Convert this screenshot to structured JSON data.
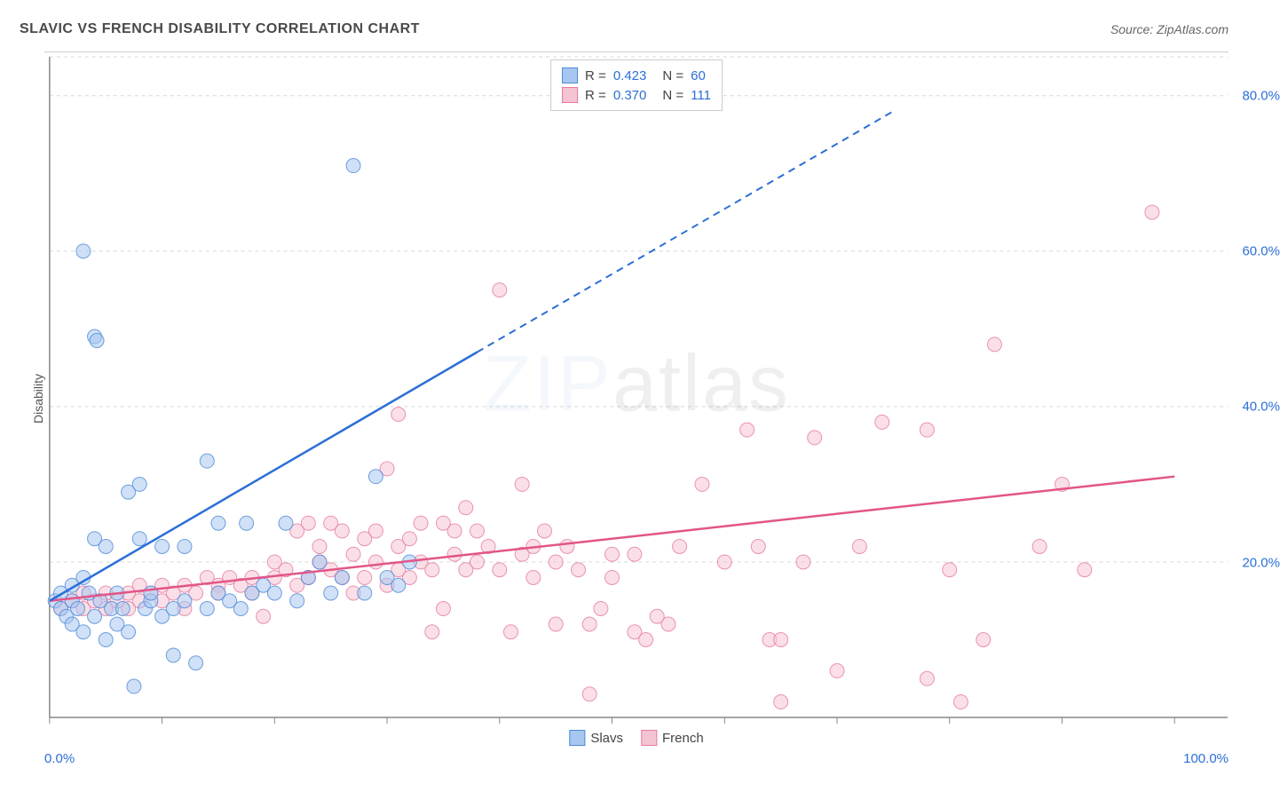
{
  "header": {
    "title": "SLAVIC VS FRENCH DISABILITY CORRELATION CHART",
    "source_label": "Source: ZipAtlas.com"
  },
  "chart": {
    "type": "scatter",
    "ylabel": "Disability",
    "watermark": {
      "zip": "ZIP",
      "atlas": "atlas"
    },
    "background_color": "#ffffff",
    "grid_color": "#d8d8d8",
    "axis_color": "#888888",
    "text_color": "#555555",
    "accent_color": "#2b6fd6",
    "xlim": [
      0,
      100
    ],
    "ylim": [
      0,
      85
    ],
    "xtick_positions": [
      0,
      10,
      20,
      30,
      40,
      50,
      60,
      70,
      80,
      90,
      100
    ],
    "xtick_labels": {
      "0": "0.0%",
      "100": "100.0%"
    },
    "ytick_positions": [
      20,
      40,
      60,
      80
    ],
    "ytick_labels": [
      "20.0%",
      "40.0%",
      "60.0%",
      "80.0%"
    ],
    "marker_radius": 8,
    "marker_opacity": 0.55,
    "line_width_solid": 2.5,
    "line_width_dash": 2,
    "series": {
      "slavs": {
        "label": "Slavs",
        "fill_color": "#a7c7f0",
        "stroke_color": "#4d89d6",
        "line_color": "#2b6fd6",
        "R": "0.423",
        "N": "60",
        "trend": {
          "x1": 0,
          "y1": 15,
          "x2": 38,
          "y2": 47,
          "dash_after_x": 38,
          "x3": 75,
          "y3": 78
        },
        "points": [
          [
            0.5,
            15
          ],
          [
            1,
            14
          ],
          [
            1,
            16
          ],
          [
            1.5,
            13
          ],
          [
            2,
            15
          ],
          [
            2,
            17
          ],
          [
            2,
            12
          ],
          [
            2.5,
            14
          ],
          [
            3,
            18
          ],
          [
            3,
            11
          ],
          [
            3.5,
            16
          ],
          [
            4,
            13
          ],
          [
            4,
            23
          ],
          [
            4.5,
            15
          ],
          [
            5,
            10
          ],
          [
            5,
            22
          ],
          [
            5.5,
            14
          ],
          [
            3,
            60
          ],
          [
            4,
            49
          ],
          [
            4.2,
            48.5
          ],
          [
            6,
            12
          ],
          [
            6,
            16
          ],
          [
            6.5,
            14
          ],
          [
            7,
            11
          ],
          [
            7,
            29
          ],
          [
            8,
            30
          ],
          [
            8,
            23
          ],
          [
            8.5,
            14
          ],
          [
            9,
            15
          ],
          [
            9,
            16
          ],
          [
            10,
            22
          ],
          [
            10,
            13
          ],
          [
            11,
            8
          ],
          [
            11,
            14
          ],
          [
            12,
            15
          ],
          [
            12,
            22
          ],
          [
            13,
            7
          ],
          [
            14,
            33
          ],
          [
            14,
            14
          ],
          [
            15,
            16
          ],
          [
            15,
            25
          ],
          [
            16,
            15
          ],
          [
            17,
            14
          ],
          [
            17.5,
            25
          ],
          [
            18,
            16
          ],
          [
            19,
            17
          ],
          [
            20,
            16
          ],
          [
            21,
            25
          ],
          [
            22,
            15
          ],
          [
            23,
            18
          ],
          [
            24,
            20
          ],
          [
            25,
            16
          ],
          [
            26,
            18
          ],
          [
            27,
            71
          ],
          [
            28,
            16
          ],
          [
            29,
            31
          ],
          [
            30,
            18
          ],
          [
            31,
            17
          ],
          [
            32,
            20
          ],
          [
            7.5,
            4
          ]
        ]
      },
      "french": {
        "label": "French",
        "fill_color": "#f5c4d3",
        "stroke_color": "#e67aa0",
        "line_color": "#e25588",
        "R": "0.370",
        "N": "111",
        "trend": {
          "x1": 0,
          "y1": 15,
          "x2": 100,
          "y2": 31
        },
        "points": [
          [
            1,
            14
          ],
          [
            2,
            15
          ],
          [
            3,
            14
          ],
          [
            3,
            16
          ],
          [
            4,
            15
          ],
          [
            5,
            14
          ],
          [
            5,
            16
          ],
          [
            6,
            15
          ],
          [
            7,
            16
          ],
          [
            7,
            14
          ],
          [
            8,
            17
          ],
          [
            8,
            15
          ],
          [
            9,
            16
          ],
          [
            10,
            17
          ],
          [
            10,
            15
          ],
          [
            11,
            16
          ],
          [
            12,
            17
          ],
          [
            12,
            14
          ],
          [
            13,
            16
          ],
          [
            14,
            18
          ],
          [
            15,
            17
          ],
          [
            15,
            16
          ],
          [
            16,
            18
          ],
          [
            17,
            17
          ],
          [
            18,
            18
          ],
          [
            18,
            16
          ],
          [
            19,
            13
          ],
          [
            20,
            18
          ],
          [
            20,
            20
          ],
          [
            21,
            19
          ],
          [
            22,
            17
          ],
          [
            22,
            24
          ],
          [
            23,
            18
          ],
          [
            23,
            25
          ],
          [
            24,
            20
          ],
          [
            24,
            22
          ],
          [
            25,
            19
          ],
          [
            25,
            25
          ],
          [
            26,
            18
          ],
          [
            26,
            24
          ],
          [
            27,
            21
          ],
          [
            27,
            16
          ],
          [
            28,
            18
          ],
          [
            28,
            23
          ],
          [
            29,
            20
          ],
          [
            29,
            24
          ],
          [
            30,
            17
          ],
          [
            30,
            32
          ],
          [
            31,
            22
          ],
          [
            31,
            19
          ],
          [
            31,
            39
          ],
          [
            32,
            18
          ],
          [
            32,
            23
          ],
          [
            33,
            20
          ],
          [
            33,
            25
          ],
          [
            34,
            11
          ],
          [
            34,
            19
          ],
          [
            35,
            14
          ],
          [
            35,
            25
          ],
          [
            36,
            24
          ],
          [
            36,
            21
          ],
          [
            37,
            19
          ],
          [
            37,
            27
          ],
          [
            38,
            20
          ],
          [
            38,
            24
          ],
          [
            39,
            22
          ],
          [
            40,
            55
          ],
          [
            40,
            19
          ],
          [
            41,
            11
          ],
          [
            42,
            30
          ],
          [
            42,
            21
          ],
          [
            43,
            18
          ],
          [
            43,
            22
          ],
          [
            44,
            24
          ],
          [
            45,
            20
          ],
          [
            45,
            12
          ],
          [
            46,
            22
          ],
          [
            47,
            19
          ],
          [
            48,
            3
          ],
          [
            48,
            12
          ],
          [
            49,
            14
          ],
          [
            50,
            21
          ],
          [
            52,
            11
          ],
          [
            52,
            21
          ],
          [
            53,
            10
          ],
          [
            55,
            12
          ],
          [
            56,
            22
          ],
          [
            58,
            30
          ],
          [
            60,
            20
          ],
          [
            62,
            37
          ],
          [
            63,
            22
          ],
          [
            64,
            10
          ],
          [
            65,
            2
          ],
          [
            65,
            10
          ],
          [
            67,
            20
          ],
          [
            68,
            36
          ],
          [
            70,
            6
          ],
          [
            72,
            22
          ],
          [
            74,
            38
          ],
          [
            78,
            5
          ],
          [
            78,
            37
          ],
          [
            80,
            19
          ],
          [
            81,
            2
          ],
          [
            83,
            10
          ],
          [
            84,
            48
          ],
          [
            88,
            22
          ],
          [
            90,
            30
          ],
          [
            92,
            19
          ],
          [
            98,
            65
          ],
          [
            50,
            18
          ],
          [
            54,
            13
          ]
        ]
      }
    },
    "legend_bottom": [
      {
        "swatch_fill": "#a7c7f0",
        "swatch_stroke": "#4d89d6",
        "label": "Slavs"
      },
      {
        "swatch_fill": "#f5c4d3",
        "swatch_stroke": "#e67aa0",
        "label": "French"
      }
    ]
  }
}
